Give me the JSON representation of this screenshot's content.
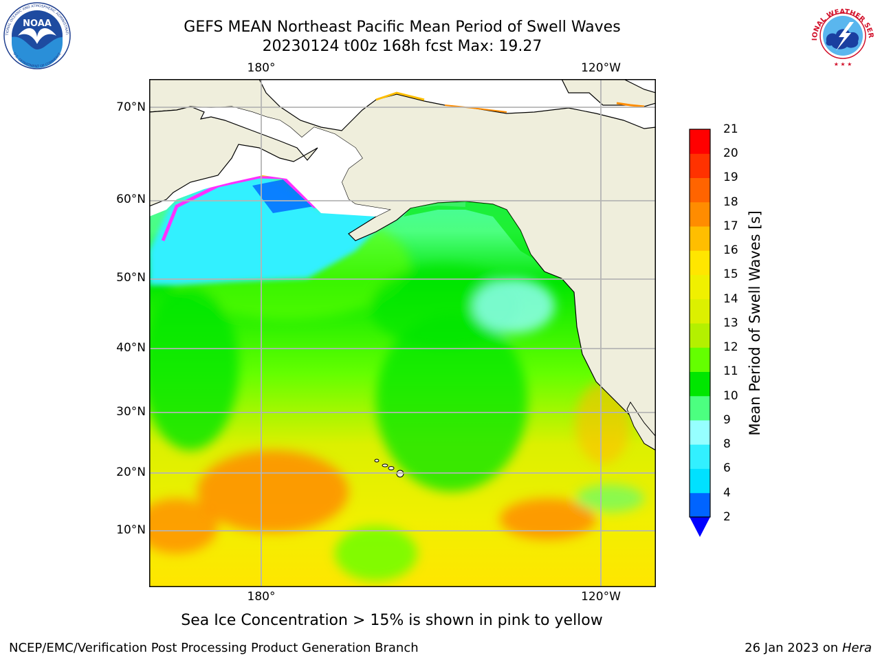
{
  "header": {
    "title_line1": "GEFS MEAN Northeast Pacific Mean Period of Swell Waves",
    "title_line2": "20230124 t00z 168h fcst   Max: 19.27"
  },
  "logos": {
    "noaa_text": "NOAA",
    "noaa_ring_top": "NATIONAL OCEANIC AND ATMOSPHERIC ADMINISTRATION",
    "noaa_ring_bottom": "U.S. DEPARTMENT OF COMMERCE",
    "nws_ring": "NATIONAL WEATHER SERVICE"
  },
  "map": {
    "top_lon_labels": [
      "180°",
      "120°W"
    ],
    "bottom_lon_labels": [
      "180°",
      "120°W"
    ],
    "lat_labels": [
      "70°N",
      "60°N",
      "50°N",
      "40°N",
      "30°N",
      "20°N",
      "10°N"
    ],
    "land_color": "#efeedc",
    "grid_color": "#b4b4b4"
  },
  "colorbar": {
    "label": "Mean Period of Swell Waves [s]",
    "ticks": [
      "21",
      "20",
      "19",
      "18",
      "17",
      "16",
      "15",
      "14",
      "13",
      "12",
      "11",
      "10",
      "9",
      "8",
      "6",
      "4",
      "2"
    ],
    "colors_bottom_to_top": [
      "#0064ff",
      "#00e1ff",
      "#32f0ff",
      "#96ffff",
      "#4cff80",
      "#00e600",
      "#64ff00",
      "#b4f000",
      "#dcf000",
      "#f0f000",
      "#ffe600",
      "#ffbe00",
      "#ff8c00",
      "#ff6400",
      "#ff3200",
      "#ff0000"
    ],
    "extend_color": "#0000ff"
  },
  "caption": "Sea Ice Concentration > 15% is shown in pink to yellow",
  "footer": {
    "left": "NCEP/EMC/Verification Post Processing Product Generation Branch",
    "right_date": "26 Jan 2023 on ",
    "right_machine": "Hera"
  }
}
